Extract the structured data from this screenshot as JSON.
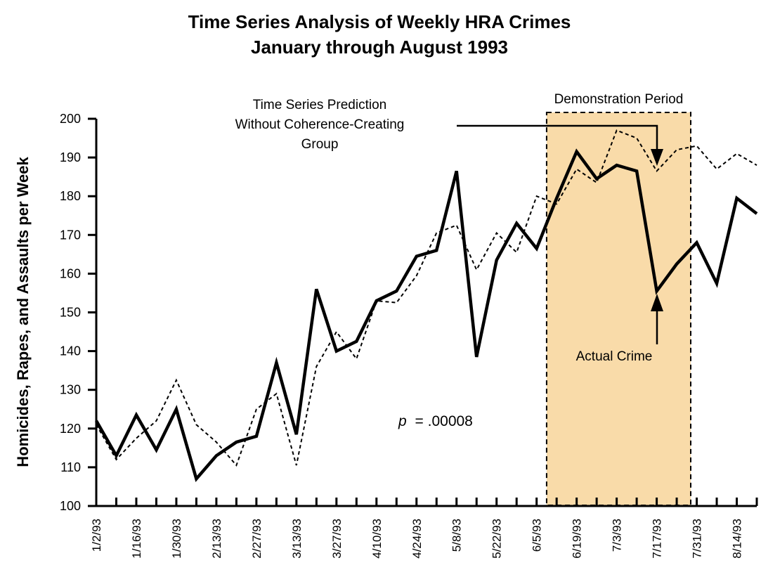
{
  "chart_data": {
    "type": "line",
    "title_line1": "Time Series Analysis of Weekly HRA Crimes",
    "title_line2": "January through August 1993",
    "ylabel": "Homicides, Rapes, and Assaults per Week",
    "xlabel": "",
    "ylim": [
      100,
      200
    ],
    "yticks": [
      100,
      110,
      120,
      130,
      140,
      150,
      160,
      170,
      180,
      190,
      200
    ],
    "x_labels": [
      "1/2/93",
      "1/16/93",
      "1/30/93",
      "2/13/93",
      "2/27/93",
      "3/13/93",
      "3/27/93",
      "4/10/93",
      "4/24/93",
      "5/8/93",
      "5/22/93",
      "6/5/93",
      "6/19/93",
      "7/3/93",
      "7/17/93",
      "7/31/93",
      "8/14/93"
    ],
    "weeks": 33,
    "series": [
      {
        "name": "Actual Crime",
        "style": "solid",
        "values": [
          122,
          113,
          123.5,
          114.5,
          125,
          107,
          113,
          116.5,
          118,
          137,
          118.5,
          156,
          140,
          142.5,
          153,
          155.5,
          164.5,
          166,
          186.5,
          138.5,
          163.5,
          173,
          166.5,
          179.5,
          191.5,
          184.5,
          188,
          186.5,
          155.5,
          162.5,
          168,
          157.5,
          179.5,
          175.5
        ]
      },
      {
        "name": "Time Series Prediction Without Coherence-Creating Group",
        "style": "dashed",
        "values": [
          121,
          112,
          117.5,
          122,
          132.5,
          121,
          116.5,
          110.5,
          125,
          129,
          110.5,
          136,
          145,
          138,
          153,
          152.5,
          159.5,
          170.5,
          172.5,
          161,
          170.5,
          165.5,
          180,
          178,
          187,
          183.5,
          197,
          195,
          186.5,
          192,
          193,
          187,
          191,
          188
        ]
      }
    ],
    "shaded_region": {
      "label": "Demonstration Period",
      "from_week": 22.5,
      "to_week": 29.7,
      "color": "#f9dba9"
    },
    "annotations": {
      "prediction_line1": "Time Series Prediction",
      "prediction_line2": "Without Coherence-Creating",
      "prediction_line3": "Group",
      "actual": "Actual Crime",
      "p_symbol": "p",
      "p_value": "= .00008"
    },
    "grid": false,
    "legend": "none"
  }
}
